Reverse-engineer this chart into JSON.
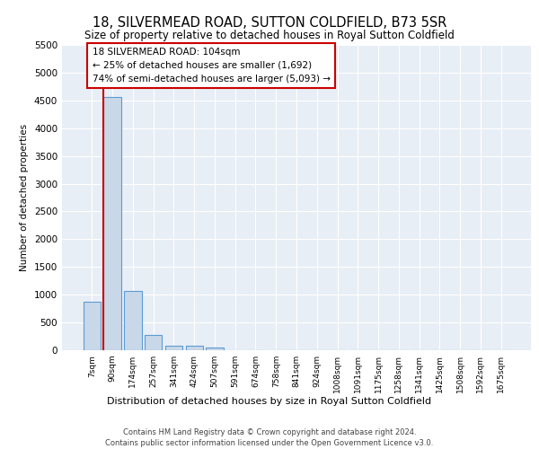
{
  "title": "18, SILVERMEAD ROAD, SUTTON COLDFIELD, B73 5SR",
  "subtitle": "Size of property relative to detached houses in Royal Sutton Coldfield",
  "xlabel": "Distribution of detached houses by size in Royal Sutton Coldfield",
  "ylabel": "Number of detached properties",
  "footer_line1": "Contains HM Land Registry data © Crown copyright and database right 2024.",
  "footer_line2": "Contains public sector information licensed under the Open Government Licence v3.0.",
  "annotation_title": "18 SILVERMEAD ROAD: 104sqm",
  "annotation_line1": "← 25% of detached houses are smaller (1,692)",
  "annotation_line2": "74% of semi-detached houses are larger (5,093) →",
  "bar_categories": [
    "7sqm",
    "90sqm",
    "174sqm",
    "257sqm",
    "341sqm",
    "424sqm",
    "507sqm",
    "591sqm",
    "674sqm",
    "758sqm",
    "841sqm",
    "924sqm",
    "1008sqm",
    "1091sqm",
    "1175sqm",
    "1258sqm",
    "1341sqm",
    "1425sqm",
    "1508sqm",
    "1592sqm",
    "1675sqm"
  ],
  "bar_values": [
    880,
    4560,
    1060,
    280,
    80,
    80,
    50,
    0,
    0,
    0,
    0,
    0,
    0,
    0,
    0,
    0,
    0,
    0,
    0,
    0,
    0
  ],
  "bar_color": "#c8d8e8",
  "bar_edge_color": "#5b9bd5",
  "property_line_color": "#cc0000",
  "annotation_box_color": "#cc0000",
  "background_color": "#e8eef5",
  "ylim": [
    0,
    5500
  ],
  "yticks": [
    0,
    500,
    1000,
    1500,
    2000,
    2500,
    3000,
    3500,
    4000,
    4500,
    5000,
    5500
  ]
}
